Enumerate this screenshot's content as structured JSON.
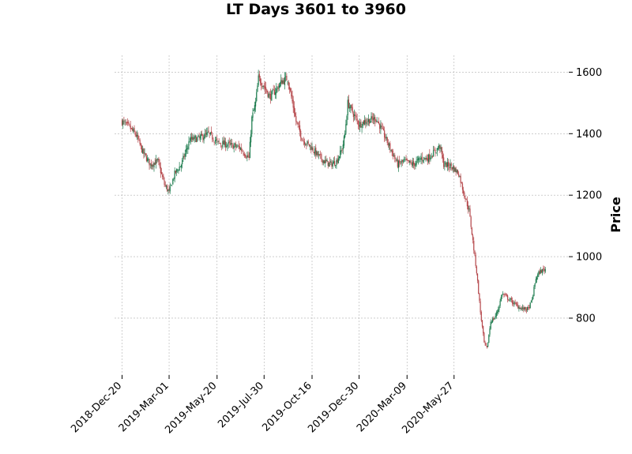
{
  "chart_data": {
    "type": "candlestick",
    "title": "LT Days 3601 to 3960",
    "xlabel": "",
    "ylabel": "Price",
    "ylim": [
      615,
      1655
    ],
    "yticks": [
      800,
      1000,
      1200,
      1400,
      1600
    ],
    "xticks": [
      "2018-Dec-20",
      "2019-Mar-01",
      "2019-May-20",
      "2019-Jul-30",
      "2019-Oct-16",
      "2019-Dec-30",
      "2020-Mar-09",
      "2020-May-27"
    ],
    "grid": true,
    "colors": {
      "up": "#1a7a4c",
      "down": "#b5474b",
      "grid": "#b0b0b0"
    },
    "price_path": [
      [
        0,
        1440
      ],
      [
        8,
        1420
      ],
      [
        15,
        1395
      ],
      [
        22,
        1340
      ],
      [
        30,
        1300
      ],
      [
        38,
        1310
      ],
      [
        45,
        1235
      ],
      [
        50,
        1210
      ],
      [
        56,
        1270
      ],
      [
        63,
        1300
      ],
      [
        72,
        1380
      ],
      [
        82,
        1385
      ],
      [
        92,
        1400
      ],
      [
        102,
        1370
      ],
      [
        112,
        1365
      ],
      [
        125,
        1355
      ],
      [
        132,
        1330
      ],
      [
        135,
        1320
      ],
      [
        138,
        1450
      ],
      [
        142,
        1500
      ],
      [
        145,
        1580
      ],
      [
        150,
        1560
      ],
      [
        157,
        1520
      ],
      [
        163,
        1540
      ],
      [
        170,
        1570
      ],
      [
        176,
        1580
      ],
      [
        180,
        1520
      ],
      [
        185,
        1440
      ],
      [
        192,
        1380
      ],
      [
        200,
        1360
      ],
      [
        208,
        1330
      ],
      [
        215,
        1310
      ],
      [
        222,
        1300
      ],
      [
        228,
        1310
      ],
      [
        234,
        1350
      ],
      [
        237,
        1400
      ],
      [
        240,
        1500
      ],
      [
        245,
        1470
      ],
      [
        252,
        1430
      ],
      [
        258,
        1440
      ],
      [
        264,
        1445
      ],
      [
        270,
        1450
      ],
      [
        275,
        1420
      ],
      [
        281,
        1380
      ],
      [
        287,
        1340
      ],
      [
        293,
        1300
      ],
      [
        300,
        1310
      ],
      [
        310,
        1300
      ],
      [
        318,
        1320
      ],
      [
        325,
        1320
      ],
      [
        332,
        1340
      ],
      [
        338,
        1360
      ],
      [
        342,
        1300
      ],
      [
        350,
        1295
      ],
      [
        358,
        1270
      ],
      [
        364,
        1200
      ],
      [
        369,
        1150
      ],
      [
        373,
        1050
      ],
      [
        377,
        950
      ],
      [
        381,
        820
      ],
      [
        385,
        720
      ],
      [
        388,
        700
      ],
      [
        392,
        790
      ],
      [
        396,
        800
      ],
      [
        400,
        830
      ],
      [
        404,
        880
      ],
      [
        408,
        870
      ],
      [
        414,
        855
      ],
      [
        420,
        840
      ],
      [
        426,
        830
      ],
      [
        432,
        830
      ],
      [
        436,
        860
      ],
      [
        440,
        930
      ],
      [
        444,
        950
      ],
      [
        447,
        955
      ],
      [
        450,
        960
      ]
    ]
  }
}
